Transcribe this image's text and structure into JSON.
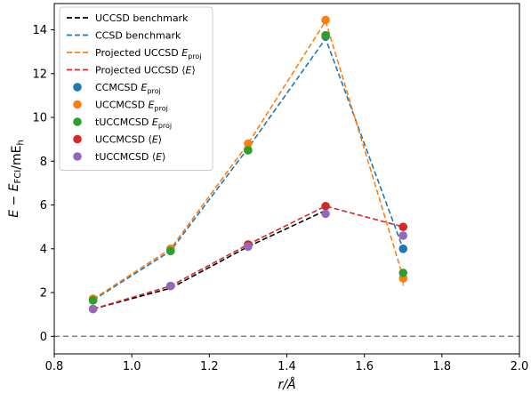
{
  "chart_data": {
    "type": "scatter",
    "xlabel": "r/Å",
    "ylabel": "E − E_FCI/mE_h",
    "xlim": [
      0.8,
      2.0
    ],
    "ylim": [
      -0.8,
      15.2
    ],
    "xticks": [
      0.8,
      1.0,
      1.2,
      1.4,
      1.6,
      1.8,
      2.0
    ],
    "yticks": [
      0,
      2,
      4,
      6,
      8,
      10,
      12,
      14
    ],
    "xtick_labels": [
      "0.8",
      "1.0",
      "1.2",
      "1.4",
      "1.6",
      "1.8",
      "2.0"
    ],
    "ytick_labels": [
      "0",
      "2",
      "4",
      "6",
      "8",
      "10",
      "12",
      "14"
    ],
    "legend_position": "top-left",
    "grid": false,
    "reference_line": {
      "y": 0,
      "style": "dashed",
      "color": "#808080"
    },
    "x": [
      0.9,
      1.1,
      1.3,
      1.5,
      1.7
    ],
    "series": [
      {
        "name": "UCCSD benchmark",
        "style": "dashed-line",
        "color": "#000000",
        "x": [
          0.9,
          1.1,
          1.3,
          1.5
        ],
        "values": [
          1.25,
          2.2,
          4.1,
          5.75
        ]
      },
      {
        "name": "CCSD benchmark",
        "style": "dashed-line",
        "color": "#1f77b4",
        "x": [
          0.9,
          1.1,
          1.3,
          1.5,
          1.7
        ],
        "values": [
          1.65,
          3.9,
          8.6,
          13.6,
          4.0
        ]
      },
      {
        "name": "Projected UCCSD E_proj",
        "style": "dashed-line",
        "color": "#ff7f0e",
        "x": [
          0.9,
          1.1,
          1.3,
          1.5,
          1.7
        ],
        "values": [
          1.7,
          4.0,
          8.8,
          14.4,
          2.7
        ]
      },
      {
        "name": "Projected UCCSD ⟨E⟩",
        "style": "dashed-line",
        "color": "#d62728",
        "x": [
          0.9,
          1.1,
          1.3,
          1.5,
          1.7
        ],
        "values": [
          1.25,
          2.3,
          4.2,
          5.95,
          5.0
        ]
      },
      {
        "name": "CCMCSD E_proj",
        "style": "marker",
        "color": "#1f77b4",
        "x": [
          0.9,
          1.1,
          1.3,
          1.5,
          1.7
        ],
        "values": [
          1.65,
          3.9,
          8.5,
          13.7,
          4.0
        ],
        "error": [
          0.05,
          0.05,
          0.05,
          0.05,
          0.15
        ]
      },
      {
        "name": "UCCMCSD E_proj",
        "style": "marker",
        "color": "#ff7f0e",
        "x": [
          0.9,
          1.1,
          1.3,
          1.5,
          1.7
        ],
        "values": [
          1.72,
          4.0,
          8.8,
          14.45,
          2.65
        ],
        "error": [
          0.05,
          0.05,
          0.05,
          0.05,
          0.35
        ]
      },
      {
        "name": "tUCCMCSD E_proj",
        "style": "marker",
        "color": "#2ca02c",
        "x": [
          0.9,
          1.1,
          1.3,
          1.5,
          1.7
        ],
        "values": [
          1.65,
          3.9,
          8.5,
          13.75,
          2.9
        ],
        "error": [
          0.05,
          0.05,
          0.05,
          0.05,
          0.1
        ]
      },
      {
        "name": "UCCMCSD ⟨E⟩",
        "style": "marker",
        "color": "#d62728",
        "x": [
          0.9,
          1.1,
          1.3,
          1.5,
          1.7
        ],
        "values": [
          1.25,
          2.3,
          4.2,
          5.95,
          5.0
        ],
        "error": [
          0.03,
          0.03,
          0.03,
          0.05,
          0.1
        ]
      },
      {
        "name": "tUCCMCSD ⟨E⟩",
        "style": "marker",
        "color": "#9467bd",
        "x": [
          0.9,
          1.1,
          1.3,
          1.5,
          1.7
        ],
        "values": [
          1.25,
          2.3,
          4.1,
          5.6,
          4.6
        ],
        "error": [
          0.03,
          0.03,
          0.03,
          0.05,
          0.1
        ]
      }
    ]
  },
  "legend": [
    {
      "kind": "line",
      "color": "#000000",
      "text": "UCCSD benchmark",
      "sub": "",
      "suffix": ""
    },
    {
      "kind": "line",
      "color": "#1f77b4",
      "text": "CCSD benchmark",
      "sub": "",
      "suffix": ""
    },
    {
      "kind": "line",
      "color": "#ff7f0e",
      "text": "Projected UCCSD ",
      "sub": "E",
      "subscript": "proj",
      "suffix": ""
    },
    {
      "kind": "line",
      "color": "#d62728",
      "text": "Projected UCCSD ⟨",
      "sub": "E",
      "subscript": "",
      "suffix": "⟩"
    },
    {
      "kind": "marker",
      "color": "#1f77b4",
      "text": "CCMCSD ",
      "sub": "E",
      "subscript": "proj",
      "suffix": ""
    },
    {
      "kind": "marker",
      "color": "#ff7f0e",
      "text": "UCCMCSD ",
      "sub": "E",
      "subscript": "proj",
      "suffix": ""
    },
    {
      "kind": "marker",
      "color": "#2ca02c",
      "text": "tUCCMCSD ",
      "sub": "E",
      "subscript": "proj",
      "suffix": ""
    },
    {
      "kind": "marker",
      "color": "#d62728",
      "text": "UCCMCSD ⟨",
      "sub": "E",
      "subscript": "",
      "suffix": "⟩"
    },
    {
      "kind": "marker",
      "color": "#9467bd",
      "text": "tUCCMCSD ⟨",
      "sub": "E",
      "subscript": "",
      "suffix": "⟩"
    }
  ]
}
